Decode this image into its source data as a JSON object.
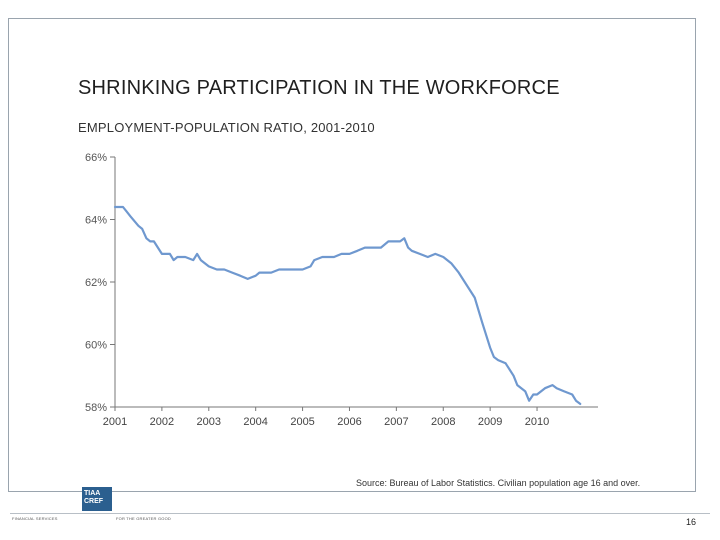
{
  "slide": {
    "title": "SHRINKING PARTICIPATION IN THE WORKFORCE",
    "subtitle": "EMPLOYMENT-POPULATION RATIO, 2001-2010",
    "source": "Source: Bureau of Labor Statistics. Civilian population age 16 and over.",
    "page_number": "16",
    "footer_left": "FINANCIAL SERVICES",
    "footer_mid": "FOR THE GREATER GOOD",
    "logo_text": [
      "TIAA",
      "CREF"
    ]
  },
  "chart_data": {
    "type": "line",
    "title": "",
    "xlabel": "",
    "ylabel": "",
    "ylim": [
      58,
      66
    ],
    "xlim": [
      2001,
      2011.3
    ],
    "yticks": [
      66,
      64,
      62,
      60,
      58
    ],
    "ytick_labels": [
      "66%",
      "64%",
      "62%",
      "60%",
      "58%"
    ],
    "xticks": [
      2001,
      2002,
      2003,
      2004,
      2005,
      2006,
      2007,
      2008,
      2009,
      2010
    ],
    "xtick_labels": [
      "2001",
      "2002",
      "2003",
      "2004",
      "2005",
      "2006",
      "2007",
      "2008",
      "2009",
      "2010"
    ],
    "grid": false,
    "line_color": "#6f98cf",
    "series": [
      {
        "name": "",
        "x": [
          2001.0,
          2001.17,
          2001.33,
          2001.5,
          2001.58,
          2001.67,
          2001.75,
          2001.83,
          2002.0,
          2002.17,
          2002.25,
          2002.33,
          2002.5,
          2002.67,
          2002.75,
          2002.83,
          2003.0,
          2003.17,
          2003.33,
          2003.5,
          2003.67,
          2003.83,
          2004.0,
          2004.08,
          2004.17,
          2004.33,
          2004.5,
          2004.67,
          2004.83,
          2005.0,
          2005.17,
          2005.25,
          2005.42,
          2005.58,
          2005.67,
          2005.83,
          2006.0,
          2006.17,
          2006.33,
          2006.5,
          2006.67,
          2006.83,
          2007.0,
          2007.08,
          2007.17,
          2007.25,
          2007.33,
          2007.5,
          2007.67,
          2007.83,
          2008.0,
          2008.17,
          2008.33,
          2008.5,
          2008.67,
          2008.83,
          2009.0,
          2009.08,
          2009.17,
          2009.33,
          2009.5,
          2009.58,
          2009.75,
          2009.83,
          2009.92,
          2010.0,
          2010.17,
          2010.33,
          2010.42,
          2010.58,
          2010.75,
          2010.83,
          2010.92
        ],
        "values": [
          64.4,
          64.4,
          64.1,
          63.8,
          63.7,
          63.4,
          63.3,
          63.3,
          62.9,
          62.9,
          62.7,
          62.8,
          62.8,
          62.7,
          62.9,
          62.7,
          62.5,
          62.4,
          62.4,
          62.3,
          62.2,
          62.1,
          62.2,
          62.3,
          62.3,
          62.3,
          62.4,
          62.4,
          62.4,
          62.4,
          62.5,
          62.7,
          62.8,
          62.8,
          62.8,
          62.9,
          62.9,
          63.0,
          63.1,
          63.1,
          63.1,
          63.3,
          63.3,
          63.3,
          63.4,
          63.1,
          63.0,
          62.9,
          62.8,
          62.9,
          62.8,
          62.6,
          62.3,
          61.9,
          61.5,
          60.7,
          59.9,
          59.6,
          59.5,
          59.4,
          59.0,
          58.7,
          58.5,
          58.2,
          58.4,
          58.4,
          58.6,
          58.7,
          58.6,
          58.5,
          58.4,
          58.2,
          58.1
        ]
      }
    ]
  }
}
